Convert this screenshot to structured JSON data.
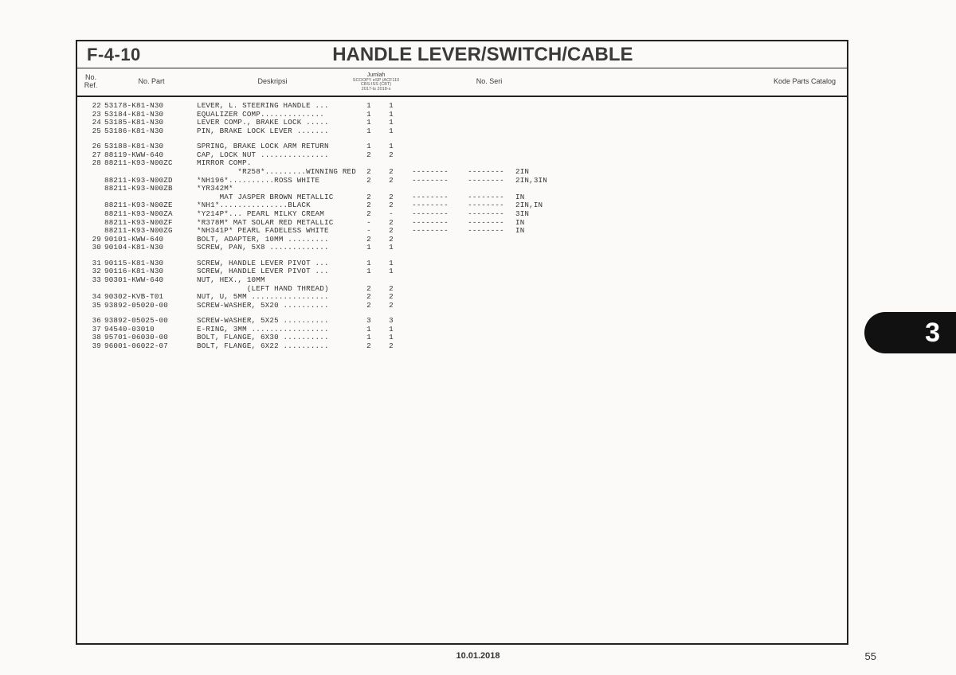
{
  "section_code": "F-4-10",
  "section_title": "HANDLE LEVER/SWITCH/CABLE",
  "columns": {
    "ref": "No.\nRef.",
    "part": "No. Part",
    "desc": "Deskripsi",
    "qty_header": "Jumlah",
    "qty_sub1": "SCOOPY eSP (ACF110",
    "qty_sub2": "CBS-ISS (CBT)",
    "qty_sub3": "2017-ts   2018-s",
    "seri": "No. Seri",
    "kode": "Kode Parts Catalog"
  },
  "thumb_tab": "3",
  "page_number": "55",
  "footer_date": "10.01.2018",
  "dash": "--------",
  "rows": [
    {
      "ref": "22",
      "part": "53178-K81-N30",
      "desc": "LEVER, L. STEERING HANDLE ...",
      "q1": "1",
      "q2": "1",
      "s1": "",
      "s2": "",
      "kode": ""
    },
    {
      "ref": "23",
      "part": "53184-K81-N30",
      "desc": "EQUALIZER COMP..............",
      "q1": "1",
      "q2": "1",
      "s1": "",
      "s2": "",
      "kode": ""
    },
    {
      "ref": "24",
      "part": "53185-K81-N30",
      "desc": "LEVER COMP., BRAKE LOCK .....",
      "q1": "1",
      "q2": "1",
      "s1": "",
      "s2": "",
      "kode": ""
    },
    {
      "ref": "25",
      "part": "53186-K81-N30",
      "desc": "PIN, BRAKE LOCK LEVER .......",
      "q1": "1",
      "q2": "1",
      "s1": "",
      "s2": "",
      "kode": ""
    },
    {
      "gap": true
    },
    {
      "ref": "26",
      "part": "53188-K81-N30",
      "desc": "SPRING, BRAKE LOCK ARM RETURN",
      "q1": "1",
      "q2": "1",
      "s1": "",
      "s2": "",
      "kode": ""
    },
    {
      "ref": "27",
      "part": "88119-KWW-640",
      "desc": "CAP, LOCK NUT ...............",
      "q1": "2",
      "q2": "2",
      "s1": "",
      "s2": "",
      "kode": ""
    },
    {
      "ref": "28",
      "part": "88211-K93-N00ZC",
      "desc": "MIRROR COMP.",
      "q1": "",
      "q2": "",
      "s1": "",
      "s2": "",
      "kode": ""
    },
    {
      "ref": "",
      "part": "",
      "desc": "         *R258*.........WINNING RED",
      "q1": "2",
      "q2": "2",
      "s1": "--------",
      "s2": "--------",
      "kode": "2IN"
    },
    {
      "ref": "",
      "part": "88211-K93-N00ZD",
      "desc": "*NH196*..........ROSS WHITE",
      "q1": "2",
      "q2": "2",
      "s1": "--------",
      "s2": "--------",
      "kode": "2IN,3IN"
    },
    {
      "ref": "",
      "part": "88211-K93-N00ZB",
      "desc": "*YR342M*",
      "q1": "",
      "q2": "",
      "s1": "",
      "s2": "",
      "kode": ""
    },
    {
      "ref": "",
      "part": "",
      "desc": "     MAT JASPER BROWN METALLIC",
      "q1": "2",
      "q2": "2",
      "s1": "--------",
      "s2": "--------",
      "kode": "IN"
    },
    {
      "ref": "",
      "part": "88211-K93-N00ZE",
      "desc": "*NH1*...............BLACK",
      "q1": "2",
      "q2": "2",
      "s1": "--------",
      "s2": "--------",
      "kode": "2IN,IN"
    },
    {
      "ref": "",
      "part": "88211-K93-N00ZA",
      "desc": "*Y214P*... PEARL MILKY CREAM",
      "q1": "2",
      "q2": "-",
      "s1": "--------",
      "s2": "--------",
      "kode": "3IN"
    },
    {
      "ref": "",
      "part": "88211-K93-N00ZF",
      "desc": "*R378M* MAT SOLAR RED METALLIC",
      "q1": "-",
      "q2": "2",
      "s1": "--------",
      "s2": "--------",
      "kode": "IN"
    },
    {
      "ref": "",
      "part": "88211-K93-N00ZG",
      "desc": "*NH341P* PEARL FADELESS WHITE",
      "q1": "-",
      "q2": "2",
      "s1": "--------",
      "s2": "--------",
      "kode": "IN"
    },
    {
      "ref": "29",
      "part": "90101-KWW-640",
      "desc": "BOLT, ADAPTER, 10MM .........",
      "q1": "2",
      "q2": "2",
      "s1": "",
      "s2": "",
      "kode": ""
    },
    {
      "ref": "30",
      "part": "90104-K81-N30",
      "desc": "SCREW, PAN, 5X8 .............",
      "q1": "1",
      "q2": "1",
      "s1": "",
      "s2": "",
      "kode": ""
    },
    {
      "gap": true
    },
    {
      "ref": "31",
      "part": "90115-K81-N30",
      "desc": "SCREW, HANDLE LEVER PIVOT ...",
      "q1": "1",
      "q2": "1",
      "s1": "",
      "s2": "",
      "kode": ""
    },
    {
      "ref": "32",
      "part": "90116-K81-N30",
      "desc": "SCREW, HANDLE LEVER PIVOT ...",
      "q1": "1",
      "q2": "1",
      "s1": "",
      "s2": "",
      "kode": ""
    },
    {
      "ref": "33",
      "part": "90301-KWW-640",
      "desc": "NUT, HEX., 10MM",
      "q1": "",
      "q2": "",
      "s1": "",
      "s2": "",
      "kode": ""
    },
    {
      "ref": "",
      "part": "",
      "desc": "           (LEFT HAND THREAD)",
      "q1": "2",
      "q2": "2",
      "s1": "",
      "s2": "",
      "kode": ""
    },
    {
      "ref": "34",
      "part": "90302-KVB-T01",
      "desc": "NUT, U, 5MM .................",
      "q1": "2",
      "q2": "2",
      "s1": "",
      "s2": "",
      "kode": ""
    },
    {
      "ref": "35",
      "part": "93892-05020-00",
      "desc": "SCREW-WASHER, 5X20 ..........",
      "q1": "2",
      "q2": "2",
      "s1": "",
      "s2": "",
      "kode": ""
    },
    {
      "gap": true
    },
    {
      "ref": "36",
      "part": "93892-05025-00",
      "desc": "SCREW-WASHER, 5X25 ..........",
      "q1": "3",
      "q2": "3",
      "s1": "",
      "s2": "",
      "kode": ""
    },
    {
      "ref": "37",
      "part": "94540-03010",
      "desc": "E-RING, 3MM .................",
      "q1": "1",
      "q2": "1",
      "s1": "",
      "s2": "",
      "kode": ""
    },
    {
      "ref": "38",
      "part": "95701-06030-00",
      "desc": "BOLT, FLANGE, 6X30 ..........",
      "q1": "1",
      "q2": "1",
      "s1": "",
      "s2": "",
      "kode": ""
    },
    {
      "ref": "39",
      "part": "96001-06022-07",
      "desc": "BOLT, FLANGE, 6X22 ..........",
      "q1": "2",
      "q2": "2",
      "s1": "",
      "s2": "",
      "kode": ""
    }
  ]
}
